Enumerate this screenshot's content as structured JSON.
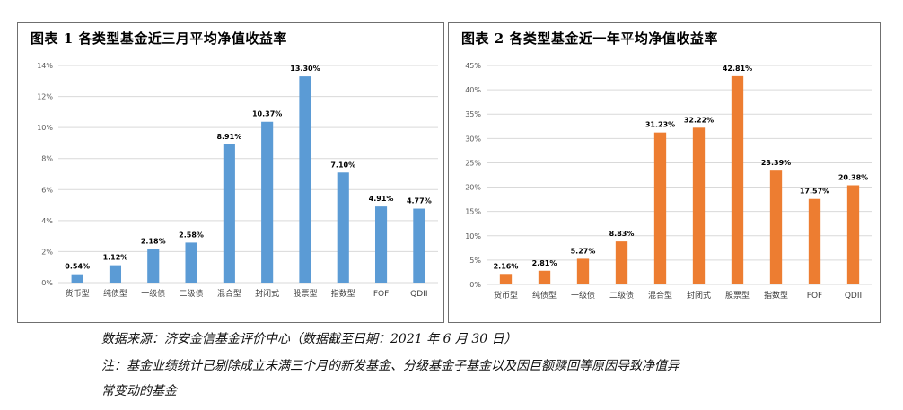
{
  "chart_data": [
    {
      "type": "bar",
      "title": "图表 1  各类型基金近三月平均净值收益率",
      "categories": [
        "货币型",
        "纯债型",
        "一级债",
        "二级债",
        "混合型",
        "封闭式",
        "股票型",
        "指数型",
        "FOF",
        "QDII"
      ],
      "values": [
        0.54,
        1.12,
        2.18,
        2.58,
        8.91,
        10.37,
        13.3,
        7.1,
        4.91,
        4.77
      ],
      "data_labels": [
        "0.54%",
        "1.12%",
        "2.18%",
        "2.58%",
        "8.91%",
        "10.37%",
        "13.30%",
        "7.10%",
        "4.91%",
        "4.77%"
      ],
      "ylim": [
        0,
        14
      ],
      "yticks": [
        0,
        2,
        4,
        6,
        8,
        10,
        12,
        14
      ],
      "ytick_labels": [
        "0%",
        "2%",
        "4%",
        "6%",
        "8%",
        "10%",
        "12%",
        "14%"
      ],
      "color": "#5b9bd5",
      "grid": true,
      "legend": "none"
    },
    {
      "type": "bar",
      "title": "图表 2  各类型基金近一年平均净值收益率",
      "categories": [
        "货币型",
        "纯债型",
        "一级债",
        "二级债",
        "混合型",
        "封闭式",
        "股票型",
        "指数型",
        "FOF",
        "QDII"
      ],
      "values": [
        2.16,
        2.81,
        5.27,
        8.83,
        31.23,
        32.22,
        42.81,
        23.39,
        17.57,
        20.38
      ],
      "data_labels": [
        "2.16%",
        "2.81%",
        "5.27%",
        "8.83%",
        "31.23%",
        "32.22%",
        "42.81%",
        "23.39%",
        "17.57%",
        "20.38%"
      ],
      "ylim": [
        0,
        45
      ],
      "yticks": [
        0,
        5,
        10,
        15,
        20,
        25,
        30,
        35,
        40,
        45
      ],
      "ytick_labels": [
        "0%",
        "5%",
        "10%",
        "15%",
        "20%",
        "25%",
        "30%",
        "35%",
        "40%",
        "45%"
      ],
      "color": "#ed7d31",
      "grid": true,
      "legend": "none"
    }
  ],
  "notes": {
    "source": "数据来源：济安金信基金评价中心（数据截至日期：2021 年 6 月 30 日）",
    "line1": "注：基金业绩统计已剔除成立未满三个月的新发基金、分级基金子基金以及因巨额赎回等原因导致净值异",
    "line2": "常变动的基金"
  }
}
